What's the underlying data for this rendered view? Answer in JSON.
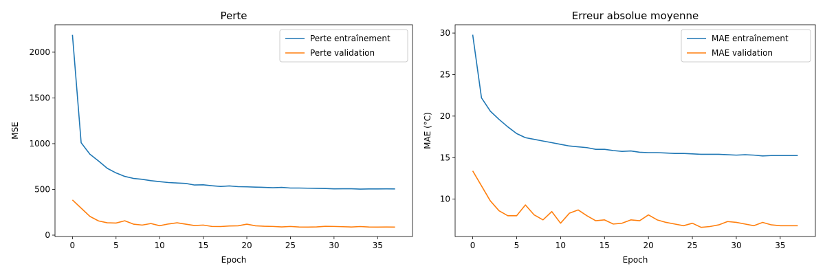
{
  "colors": {
    "train": "#1f77b4",
    "val": "#ff7f0e"
  },
  "chart_data": [
    {
      "type": "line",
      "title": "Perte",
      "xlabel": "Epoch",
      "ylabel": "MSE",
      "xlim": [
        -2.0,
        39.0
      ],
      "ylim": [
        -15,
        2300
      ],
      "xticks": [
        0,
        5,
        10,
        15,
        20,
        25,
        30,
        35
      ],
      "yticks": [
        0,
        500,
        1000,
        1500,
        2000
      ],
      "legend_position": "top-right",
      "grid": false,
      "series": [
        {
          "name": "Perte entraînement",
          "color_key": "train",
          "values": [
            2190,
            1010,
            885,
            810,
            730,
            680,
            642,
            620,
            610,
            595,
            585,
            575,
            570,
            565,
            548,
            550,
            540,
            532,
            538,
            530,
            528,
            525,
            522,
            518,
            522,
            515,
            515,
            513,
            512,
            510,
            506,
            507,
            507,
            503,
            505,
            505,
            506,
            505
          ]
        },
        {
          "name": "Perte validation",
          "color_key": "val",
          "values": [
            385,
            295,
            205,
            155,
            135,
            132,
            157,
            120,
            110,
            127,
            103,
            122,
            135,
            120,
            105,
            110,
            95,
            94,
            100,
            102,
            120,
            102,
            97,
            95,
            90,
            95,
            89,
            88,
            90,
            96,
            95,
            92,
            89,
            94,
            89,
            88,
            89,
            88
          ]
        }
      ]
    },
    {
      "type": "line",
      "title": "Erreur absolue moyenne",
      "xlabel": "Epoch",
      "ylabel": "MAE (°C)",
      "xlim": [
        -2.0,
        39.0
      ],
      "ylim": [
        5.5,
        31.0
      ],
      "xticks": [
        0,
        5,
        10,
        15,
        20,
        25,
        30,
        35
      ],
      "yticks": [
        10,
        15,
        20,
        25,
        30
      ],
      "legend_position": "top-right",
      "grid": false,
      "series": [
        {
          "name": "MAE entraînement",
          "color_key": "train",
          "values": [
            29.8,
            22.2,
            20.6,
            19.6,
            18.7,
            17.9,
            17.4,
            17.2,
            17.0,
            16.8,
            16.6,
            16.4,
            16.3,
            16.2,
            16.0,
            16.0,
            15.85,
            15.75,
            15.8,
            15.65,
            15.6,
            15.6,
            15.55,
            15.5,
            15.5,
            15.45,
            15.4,
            15.4,
            15.4,
            15.35,
            15.3,
            15.35,
            15.3,
            15.2,
            15.25,
            15.25,
            15.25,
            15.25
          ]
        },
        {
          "name": "MAE validation",
          "color_key": "val",
          "values": [
            13.4,
            11.6,
            9.8,
            8.6,
            8.0,
            8.0,
            9.3,
            8.1,
            7.5,
            8.5,
            7.1,
            8.3,
            8.7,
            8.0,
            7.4,
            7.5,
            7.0,
            7.1,
            7.5,
            7.4,
            8.1,
            7.5,
            7.2,
            7.0,
            6.8,
            7.1,
            6.6,
            6.7,
            6.9,
            7.3,
            7.2,
            7.0,
            6.8,
            7.2,
            6.9,
            6.8,
            6.8,
            6.8
          ]
        }
      ]
    }
  ]
}
